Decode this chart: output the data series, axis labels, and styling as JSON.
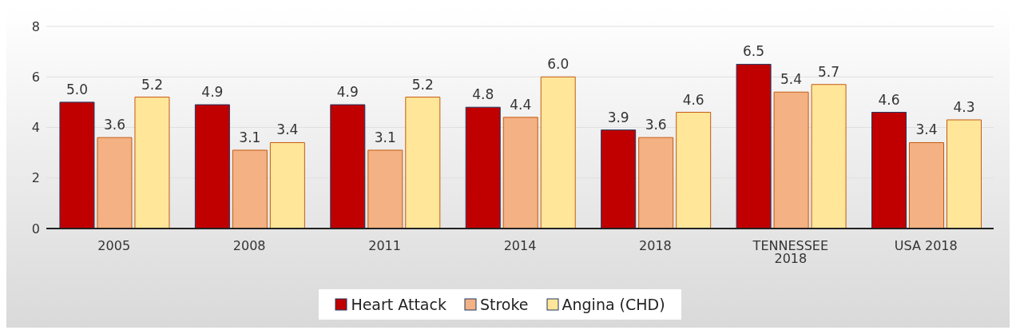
{
  "chart_data": {
    "type": "bar",
    "categories": [
      "2005",
      "2008",
      "2011",
      "2014",
      "2018",
      "TENNESSEE 2018",
      "USA 2018"
    ],
    "series": [
      {
        "name": "Heart Attack",
        "color": "#c00000",
        "values": [
          5.0,
          4.9,
          4.9,
          4.8,
          3.9,
          6.5,
          4.6
        ],
        "value_labels": [
          "5.0",
          "4.9",
          "4.9",
          "4.8",
          "3.9",
          "6.5",
          "4.6"
        ]
      },
      {
        "name": "Stroke",
        "color": "#f4b183",
        "values": [
          3.6,
          3.1,
          3.1,
          4.4,
          3.6,
          5.4,
          3.4
        ],
        "value_labels": [
          "3.6",
          "3.1",
          "3.1",
          "4.4",
          "3.6",
          "5.4",
          "3.4"
        ]
      },
      {
        "name": "Angina (CHD)",
        "color": "#ffe699",
        "values": [
          5.2,
          3.4,
          5.2,
          6.0,
          4.6,
          5.7,
          4.3
        ],
        "value_labels": [
          "5.2",
          "3.4",
          "5.2",
          "6.0",
          "4.6",
          "5.7",
          "4.3"
        ]
      }
    ],
    "ylim": [
      0,
      8
    ],
    "yticks": [
      0,
      2,
      4,
      6,
      8
    ],
    "grid": "y",
    "legend": "bottom"
  }
}
